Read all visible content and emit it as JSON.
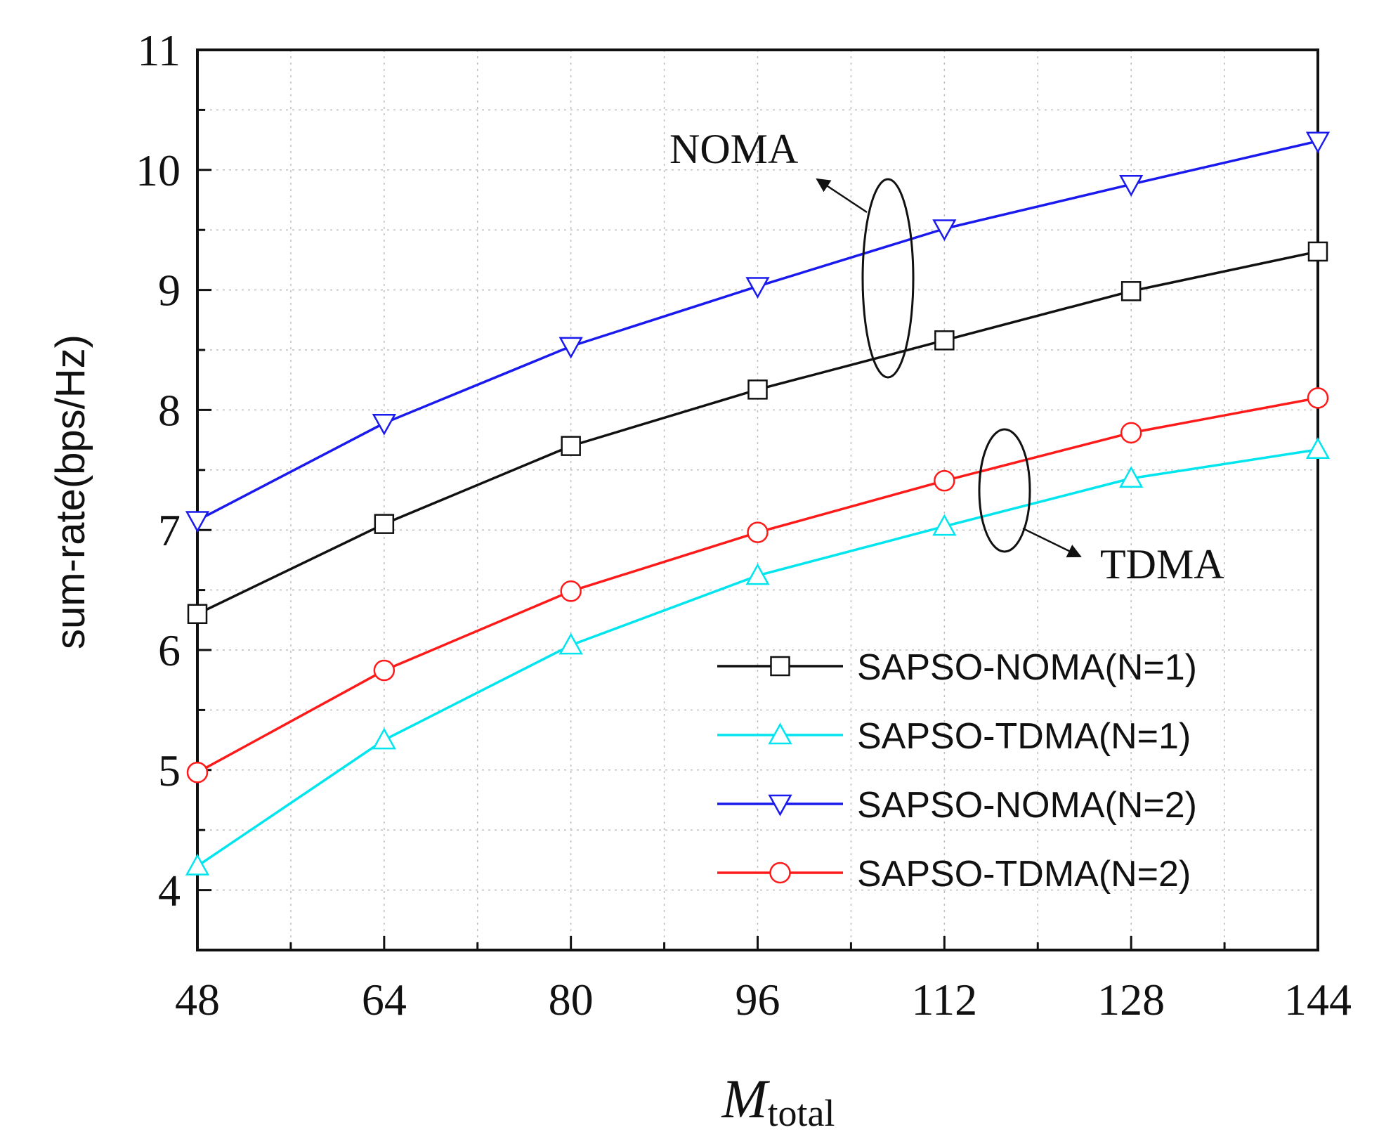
{
  "chart_data": {
    "type": "line",
    "title": "",
    "xlabel": "M",
    "xlabel_subscript": "total",
    "ylabel": "sum-rate(bps/Hz)",
    "x": [
      48,
      64,
      80,
      96,
      112,
      128,
      144
    ],
    "xlim": [
      48,
      144
    ],
    "ylim": [
      3.5,
      11
    ],
    "xticks": [
      "48",
      "64",
      "80",
      "96",
      "112",
      "128",
      "144"
    ],
    "yticks": [
      "4",
      "5",
      "6",
      "7",
      "8",
      "9",
      "10",
      "11"
    ],
    "grid": true,
    "legend_position": "bottom-right",
    "series": [
      {
        "name": "SAPSO-NOMA(N=1)",
        "color": "#111111",
        "marker": "square",
        "values": [
          6.3,
          7.05,
          7.7,
          8.17,
          8.58,
          8.99,
          9.32
        ]
      },
      {
        "name": "SAPSO-TDMA(N=1)",
        "color": "#00e5ee",
        "marker": "triangle-up",
        "values": [
          4.2,
          5.25,
          6.04,
          6.62,
          7.03,
          7.43,
          7.67
        ]
      },
      {
        "name": "SAPSO-NOMA(N=2)",
        "color": "#1a1aee",
        "marker": "triangle-down",
        "values": [
          7.08,
          7.89,
          8.53,
          9.03,
          9.51,
          9.88,
          10.24
        ]
      },
      {
        "name": "SAPSO-TDMA(N=2)",
        "color": "#ff1a1a",
        "marker": "circle",
        "values": [
          4.98,
          5.83,
          6.49,
          6.98,
          7.41,
          7.81,
          8.1
        ]
      }
    ],
    "annotations": [
      {
        "text": "NOMA"
      },
      {
        "text": "TDMA"
      }
    ]
  }
}
